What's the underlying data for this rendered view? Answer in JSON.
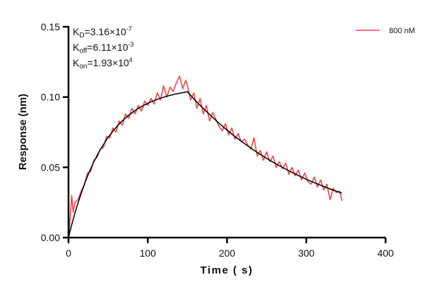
{
  "chart_data": {
    "type": "line",
    "xlabel": "Time ( s)",
    "ylabel": "Response (nm)",
    "xlim": [
      0,
      400
    ],
    "ylim": [
      0,
      0.15
    ],
    "xticks": [
      "0",
      "100",
      "200",
      "300",
      "400"
    ],
    "yticks": [
      "0.00",
      "0.05",
      "0.10",
      "0.15"
    ],
    "grid": false,
    "legend_position": "top-right",
    "annotations": [
      {
        "base": "K",
        "sub": "D",
        "value": "=3.16×10",
        "exp": "-7"
      },
      {
        "base": "K",
        "sub": "off",
        "value": "=6.11×10",
        "exp": "-3"
      },
      {
        "base": "K",
        "sub": "on",
        "value": "=1.93×10",
        "exp": "4"
      }
    ],
    "series": [
      {
        "name": "800 nM",
        "color": "#e8474a",
        "x": [
          0,
          2,
          4,
          6,
          8,
          12,
          16,
          20,
          24,
          28,
          32,
          36,
          40,
          44,
          48,
          52,
          56,
          60,
          64,
          68,
          72,
          76,
          80,
          84,
          88,
          92,
          96,
          100,
          104,
          108,
          112,
          116,
          120,
          124,
          128,
          132,
          136,
          140,
          144,
          148,
          150,
          154,
          158,
          162,
          166,
          170,
          174,
          178,
          182,
          186,
          190,
          194,
          198,
          202,
          206,
          210,
          214,
          218,
          222,
          226,
          230,
          234,
          238,
          242,
          246,
          250,
          254,
          258,
          262,
          266,
          270,
          274,
          278,
          282,
          286,
          290,
          294,
          298,
          302,
          306,
          310,
          314,
          318,
          322,
          326,
          330,
          334,
          338,
          342,
          345
        ],
        "y": [
          0.0,
          0.012,
          0.03,
          0.018,
          0.025,
          0.027,
          0.033,
          0.038,
          0.046,
          0.047,
          0.055,
          0.057,
          0.063,
          0.064,
          0.072,
          0.071,
          0.078,
          0.075,
          0.083,
          0.08,
          0.088,
          0.085,
          0.092,
          0.088,
          0.094,
          0.09,
          0.097,
          0.094,
          0.099,
          0.095,
          0.103,
          0.098,
          0.108,
          0.1,
          0.107,
          0.104,
          0.11,
          0.115,
          0.106,
          0.112,
          0.108,
          0.098,
          0.103,
          0.092,
          0.099,
          0.088,
          0.094,
          0.083,
          0.089,
          0.084,
          0.079,
          0.076,
          0.081,
          0.073,
          0.078,
          0.07,
          0.074,
          0.068,
          0.07,
          0.066,
          0.063,
          0.071,
          0.058,
          0.062,
          0.055,
          0.061,
          0.054,
          0.058,
          0.05,
          0.054,
          0.049,
          0.053,
          0.045,
          0.05,
          0.044,
          0.048,
          0.041,
          0.046,
          0.04,
          0.038,
          0.043,
          0.036,
          0.041,
          0.034,
          0.038,
          0.027,
          0.035,
          0.032,
          0.033,
          0.026
        ]
      },
      {
        "color": "#000000",
        "x": [
          0,
          4,
          8,
          12,
          16,
          20,
          24,
          28,
          32,
          36,
          40,
          48,
          56,
          64,
          72,
          80,
          88,
          96,
          104,
          112,
          120,
          128,
          136,
          144,
          150,
          160,
          170,
          180,
          190,
          200,
          210,
          220,
          230,
          240,
          250,
          260,
          270,
          280,
          290,
          300,
          310,
          320,
          330,
          340,
          345
        ],
        "y": [
          0.0,
          0.009,
          0.0172,
          0.0246,
          0.0315,
          0.0379,
          0.0437,
          0.049,
          0.0539,
          0.0584,
          0.0625,
          0.0697,
          0.0758,
          0.0809,
          0.0852,
          0.0888,
          0.0919,
          0.0944,
          0.0966,
          0.0984,
          0.0999,
          0.1012,
          0.1023,
          0.1031,
          0.1038,
          0.0976,
          0.0919,
          0.0865,
          0.0813,
          0.0765,
          0.0719,
          0.0677,
          0.0637,
          0.0599,
          0.0564,
          0.053,
          0.0499,
          0.047,
          0.0442,
          0.0415,
          0.0391,
          0.0368,
          0.0346,
          0.0326,
          0.0317
        ]
      }
    ]
  }
}
